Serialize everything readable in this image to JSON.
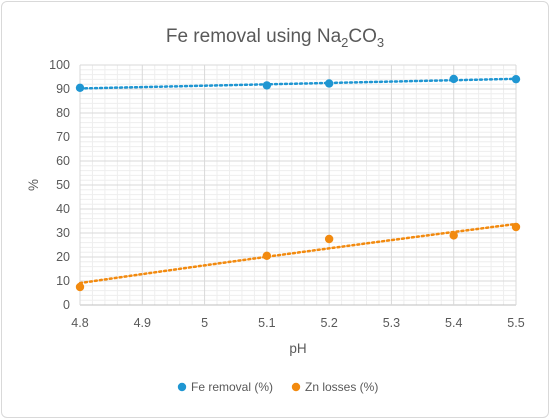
{
  "chart_data": {
    "type": "scatter",
    "title_main": "Fe removal using  Na",
    "title_sub": "2",
    "title_tail": "CO",
    "title_sub2": "3",
    "xlabel": "pH",
    "ylabel": "%",
    "xlim": [
      4.8,
      5.5
    ],
    "ylim": [
      0,
      100
    ],
    "xticks": [
      "4.8",
      "4.9",
      "5",
      "5.1",
      "5.2",
      "5.3",
      "5.4",
      "5.5"
    ],
    "yticks": [
      "0",
      "10",
      "20",
      "30",
      "40",
      "50",
      "60",
      "70",
      "80",
      "90",
      "100"
    ],
    "grid": true,
    "legend_position": "bottom",
    "series": [
      {
        "name": "Fe removal (%)",
        "color": "#1f96d2",
        "x": [
          4.8,
          5.1,
          5.2,
          5.4,
          5.5
        ],
        "y": [
          90.5,
          91.5,
          92.3,
          94.2,
          94.1
        ],
        "trendline": "linear"
      },
      {
        "name": "Zn losses (%)",
        "color": "#f28a0f",
        "x": [
          4.8,
          5.1,
          5.2,
          5.4,
          5.5
        ],
        "y": [
          7.5,
          20.5,
          27.5,
          29.0,
          32.5
        ],
        "trendline": "logarithmic"
      }
    ]
  }
}
